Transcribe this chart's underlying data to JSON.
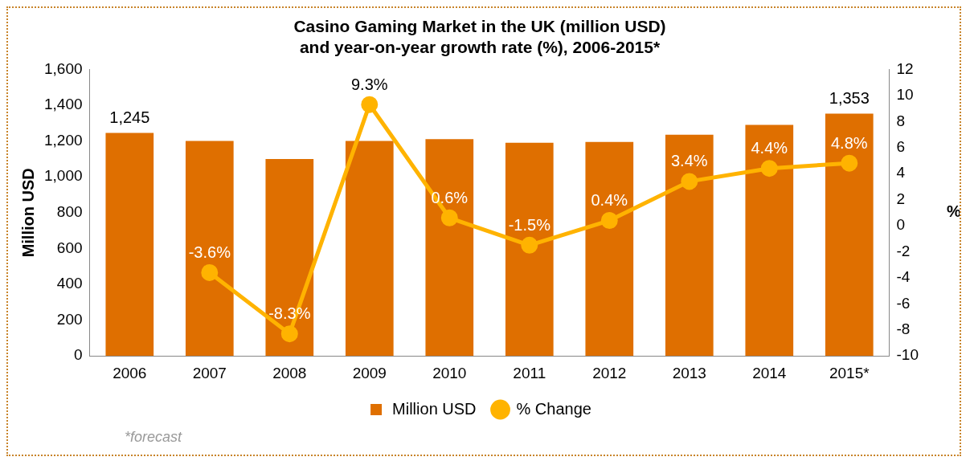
{
  "chart_data": {
    "type": "bar",
    "title": "Casino Gaming Market in the UK (million USD)\nand year-on-year growth rate (%), 2006-2015*",
    "ylabel": "Million USD",
    "y2label": "%",
    "categories": [
      "2006",
      "2007",
      "2008",
      "2009",
      "2010",
      "2011",
      "2012",
      "2013",
      "2014",
      "2015*"
    ],
    "series": [
      {
        "name": "Million USD",
        "color": "#df6f00",
        "values": [
          1245,
          1200,
          1100,
          1200,
          1210,
          1190,
          1195,
          1235,
          1290,
          1353
        ],
        "value_labels": [
          "1,245",
          null,
          null,
          null,
          null,
          null,
          null,
          null,
          null,
          "1,353"
        ]
      },
      {
        "name": "% Change",
        "type": "line",
        "axis": "y2",
        "color": "#ffb300",
        "marker": "circle",
        "values": [
          null,
          -3.6,
          -8.3,
          9.3,
          0.6,
          -1.5,
          0.4,
          3.4,
          4.4,
          4.8
        ],
        "value_labels": [
          null,
          "-3.6%",
          "-8.3%",
          "9.3%",
          "0.6%",
          "-1.5%",
          "0.4%",
          "3.4%",
          "4.4%",
          "4.8%"
        ]
      }
    ],
    "ylim": [
      0,
      1600
    ],
    "yticks": [
      0,
      200,
      400,
      600,
      800,
      {
        "value": 1000,
        "label": "1,000"
      },
      {
        "value": 1200,
        "label": "1,200"
      },
      {
        "value": 1400,
        "label": "1,400"
      },
      {
        "value": 1600,
        "label": "1,600"
      }
    ],
    "y2lim": [
      -10,
      12
    ],
    "y2ticks": [
      -10,
      -8,
      -6,
      -4,
      -2,
      0,
      2,
      4,
      6,
      8,
      10,
      12
    ],
    "grid": false,
    "legend": "bottom",
    "annotations": [
      "*forecast"
    ]
  }
}
